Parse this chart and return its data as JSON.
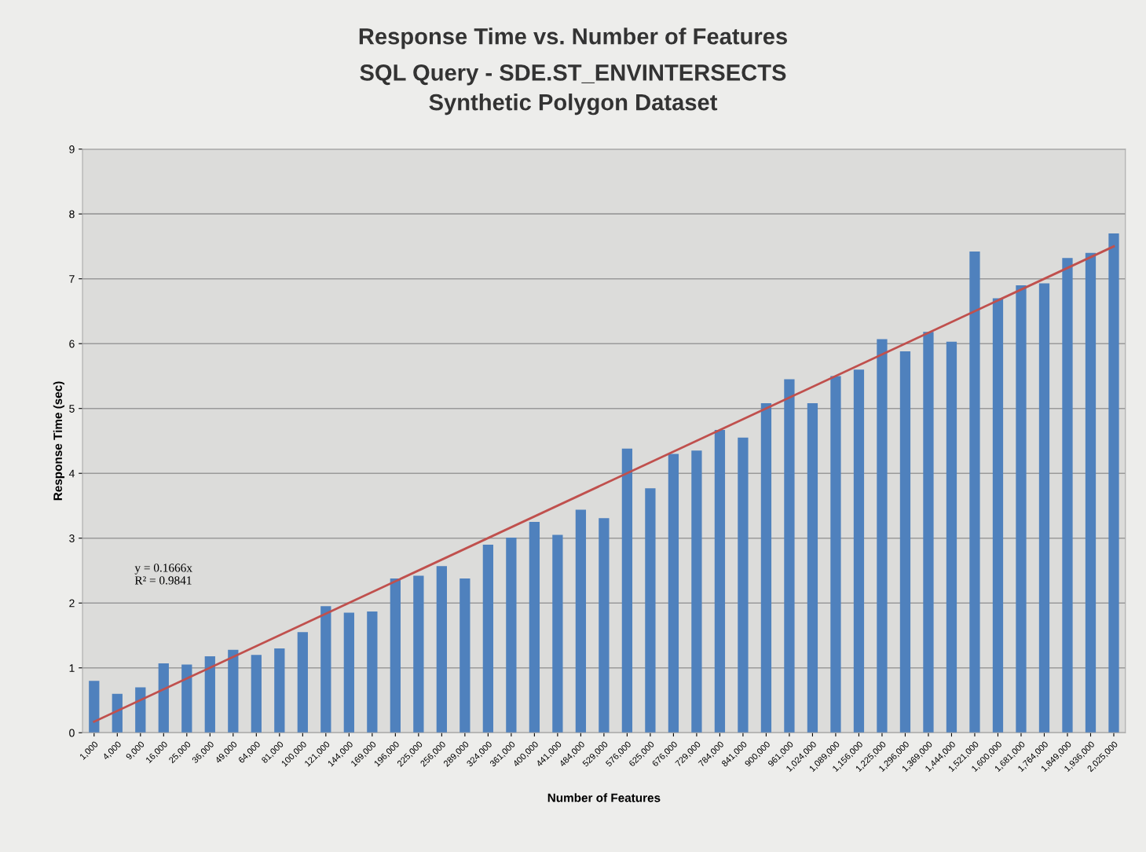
{
  "chart_data": {
    "type": "bar",
    "title": "Response Time vs. Number of Features",
    "subtitle": "SQL Query - SDE.ST_ENVINTERSECTS\nSynthetic Polygon Dataset",
    "xlabel": "Number of Features",
    "ylabel": "Response Time (sec)",
    "categories": [
      "1,000",
      "4,000",
      "9,000",
      "16,000",
      "25,000",
      "36,000",
      "49,000",
      "64,000",
      "81,000",
      "100,000",
      "121,000",
      "144,000",
      "169,000",
      "196,000",
      "225,000",
      "256,000",
      "289,000",
      "324,000",
      "361,000",
      "400,000",
      "441,000",
      "484,000",
      "529,000",
      "576,000",
      "625,000",
      "676,000",
      "729,000",
      "784,000",
      "841,000",
      "900,000",
      "961,000",
      "1,024,000",
      "1,089,000",
      "1,156,000",
      "1,225,000",
      "1,296,000",
      "1,369,000",
      "1,444,000",
      "1,521,000",
      "1,600,000",
      "1,681,000",
      "1,764,000",
      "1,849,000",
      "1,936,000",
      "2,025,000"
    ],
    "series": [
      {
        "color": "#4f81bd",
        "values": [
          0.8,
          0.6,
          0.7,
          1.07,
          1.05,
          1.18,
          1.28,
          1.2,
          1.3,
          1.55,
          1.95,
          1.85,
          1.87,
          2.38,
          2.42,
          2.57,
          2.38,
          2.9,
          3.01,
          3.25,
          3.05,
          3.44,
          3.31,
          4.38,
          3.77,
          4.3,
          4.35,
          4.67,
          4.55,
          5.08,
          5.45,
          5.08,
          5.5,
          5.6,
          6.07,
          5.88,
          6.18,
          6.03,
          7.42,
          6.7,
          6.9,
          6.93,
          7.32,
          7.4,
          7.7
        ]
      },
      {
        "type": "line",
        "color": "#c0504d",
        "x": [
          "1,000",
          "2,025,000"
        ],
        "values": [
          0.17,
          7.5
        ]
      }
    ],
    "ylim": [
      0,
      9
    ],
    "yticks": [
      0,
      1,
      2,
      3,
      4,
      5,
      6,
      7,
      8,
      9
    ],
    "grid": "y",
    "legend": false,
    "annotations": [
      "y = 0.1666x\nR² = 0.9841"
    ]
  }
}
